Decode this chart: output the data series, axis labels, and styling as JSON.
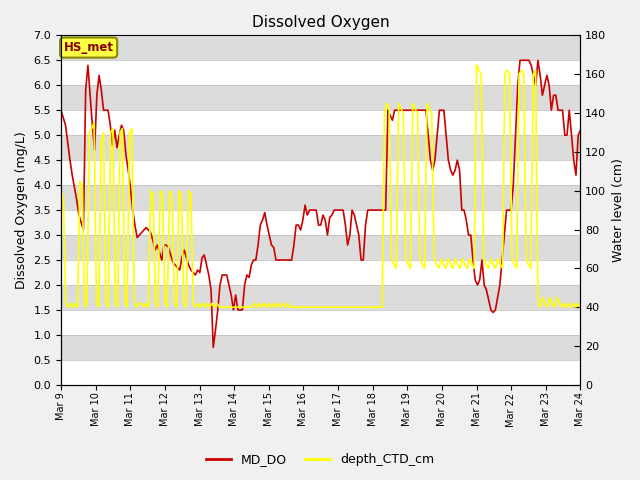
{
  "title": "Dissolved Oxygen",
  "ylabel_left": "Dissolved Oxygen (mg/L)",
  "ylabel_right": "Water level (cm)",
  "ylim_left": [
    0.0,
    7.0
  ],
  "ylim_right": [
    0,
    180
  ],
  "yticks_left": [
    0.0,
    0.5,
    1.0,
    1.5,
    2.0,
    2.5,
    3.0,
    3.5,
    4.0,
    4.5,
    5.0,
    5.5,
    6.0,
    6.5,
    7.0
  ],
  "yticks_right": [
    0,
    20,
    40,
    60,
    80,
    100,
    120,
    140,
    160,
    180
  ],
  "xtick_labels": [
    "Mar 9",
    "Mar 10",
    "Mar 11",
    "Mar 12",
    "Mar 13",
    "Mar 14",
    "Mar 15",
    "Mar 16",
    "Mar 17",
    "Mar 18",
    "Mar 19",
    "Mar 20",
    "Mar 21",
    "Mar 22",
    "Mar 23",
    "Mar 24"
  ],
  "label_do": "MD_DO",
  "label_depth": "depth_CTD_cm",
  "color_do": "#cc0000",
  "color_depth": "#ffff00",
  "annotation_text": "HS_met",
  "annotation_bg": "#ffff44",
  "annotation_border": "#888800",
  "do_values": [
    5.5,
    5.35,
    5.2,
    4.85,
    4.5,
    4.2,
    3.95,
    3.7,
    3.4,
    3.25,
    3.1,
    5.9,
    6.4,
    5.8,
    5.2,
    4.7,
    5.8,
    6.2,
    5.9,
    5.5,
    5.5,
    5.5,
    5.2,
    4.8,
    5.1,
    4.75,
    5.0,
    5.2,
    5.1,
    4.6,
    4.3,
    3.95,
    3.5,
    3.2,
    2.95,
    3.0,
    3.05,
    3.1,
    3.15,
    3.1,
    3.05,
    2.9,
    2.7,
    2.8,
    2.65,
    2.5,
    2.8,
    2.8,
    2.75,
    2.6,
    2.45,
    2.4,
    2.35,
    2.3,
    2.55,
    2.7,
    2.55,
    2.4,
    2.3,
    2.25,
    2.2,
    2.3,
    2.25,
    2.55,
    2.6,
    2.4,
    2.2,
    1.9,
    0.75,
    1.1,
    1.5,
    2.0,
    2.2,
    2.2,
    2.2,
    2.0,
    1.8,
    1.5,
    1.8,
    1.5,
    1.5,
    1.5,
    2.0,
    2.2,
    2.15,
    2.4,
    2.5,
    2.5,
    2.8,
    3.2,
    3.3,
    3.45,
    3.2,
    3.0,
    2.8,
    2.75,
    2.5,
    2.5,
    2.5,
    2.5,
    2.5,
    2.5,
    2.5,
    2.5,
    2.8,
    3.2,
    3.2,
    3.1,
    3.3,
    3.6,
    3.4,
    3.5,
    3.5,
    3.5,
    3.5,
    3.2,
    3.2,
    3.4,
    3.3,
    3.0,
    3.35,
    3.4,
    3.5,
    3.5,
    3.5,
    3.5,
    3.5,
    3.2,
    2.8,
    3.0,
    3.5,
    3.4,
    3.2,
    3.0,
    2.5,
    2.5,
    3.2,
    3.5,
    3.5,
    3.5,
    3.5,
    3.5,
    3.5,
    3.5,
    3.5,
    3.5,
    5.5,
    5.4,
    5.3,
    5.5,
    5.5,
    5.5,
    5.5,
    5.5,
    5.5,
    5.5,
    5.5,
    5.5,
    5.5,
    5.5,
    5.5,
    5.5,
    5.5,
    5.5,
    5.0,
    4.5,
    4.3,
    4.5,
    5.0,
    5.5,
    5.5,
    5.5,
    5.0,
    4.5,
    4.3,
    4.2,
    4.3,
    4.5,
    4.3,
    3.5,
    3.5,
    3.3,
    3.0,
    3.0,
    2.5,
    2.1,
    2.0,
    2.1,
    2.5,
    2.0,
    1.9,
    1.7,
    1.5,
    1.45,
    1.5,
    1.75,
    2.0,
    2.5,
    3.0,
    3.5,
    3.5,
    3.5,
    4.0,
    5.0,
    6.0,
    6.5,
    6.5,
    6.5,
    6.5,
    6.5,
    6.4,
    6.2,
    6.0,
    6.5,
    6.2,
    5.8,
    6.0,
    6.2,
    6.0,
    5.5,
    5.8,
    5.8,
    5.5,
    5.5,
    5.5,
    5.0,
    5.0,
    5.5,
    5.0,
    4.5,
    4.2,
    5.0,
    5.1
  ],
  "depth_values": [
    100,
    95,
    42,
    40,
    42,
    40,
    42,
    40,
    105,
    102,
    40,
    42,
    130,
    132,
    135,
    42,
    40,
    125,
    130,
    42,
    40,
    130,
    132,
    42,
    40,
    130,
    132,
    42,
    40,
    130,
    132,
    42,
    40,
    42,
    42,
    40,
    42,
    40,
    100,
    98,
    42,
    40,
    100,
    98,
    42,
    40,
    100,
    98,
    42,
    40,
    100,
    98,
    42,
    40,
    100,
    98,
    42,
    40,
    42,
    40,
    42,
    40,
    42,
    40,
    42,
    40,
    42,
    40,
    40,
    40,
    40,
    40,
    40,
    40,
    40,
    40,
    40,
    40,
    40,
    40,
    40,
    40,
    42,
    40,
    42,
    40,
    42,
    40,
    42,
    40,
    42,
    40,
    42,
    40,
    42,
    40,
    42,
    40,
    40,
    40,
    40,
    40,
    40,
    40,
    40,
    40,
    40,
    40,
    40,
    40,
    40,
    40,
    40,
    40,
    40,
    40,
    40,
    40,
    40,
    40,
    40,
    40,
    40,
    40,
    40,
    40,
    40,
    40,
    40,
    40,
    40,
    40,
    40,
    40,
    40,
    40,
    40,
    140,
    145,
    142,
    65,
    62,
    60,
    145,
    142,
    140,
    65,
    62,
    60,
    145,
    142,
    140,
    65,
    62,
    60,
    145,
    142,
    140,
    65,
    62,
    60,
    65,
    62,
    60,
    65,
    62,
    60,
    65,
    62,
    60,
    65,
    62,
    60,
    65,
    62,
    60,
    165,
    162,
    160,
    65,
    62,
    60,
    65,
    62,
    60,
    65,
    62,
    60,
    160,
    162,
    160,
    65,
    62,
    60,
    160,
    162,
    160,
    65,
    62,
    60,
    160,
    162,
    42,
    40,
    45,
    42,
    40,
    45,
    42,
    40,
    45,
    42,
    40,
    42,
    40,
    42,
    40,
    42,
    40,
    42,
    40
  ]
}
